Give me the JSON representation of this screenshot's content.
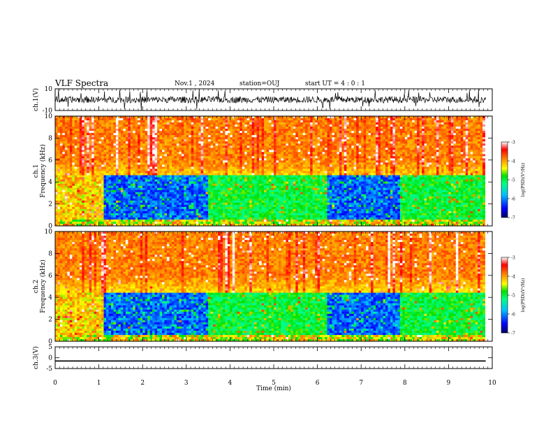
{
  "header": {
    "title": "VLF Spectra",
    "date": "Nov.1 , 2024",
    "station": "station=OUJ",
    "start_ut": "start UT = 4 : 0 : 1"
  },
  "colors": {
    "spectrogram_low": "#00007f",
    "spectrogram_mid": "#00e000",
    "spectrogram_high": "#ff2000",
    "trace": "#000000"
  },
  "chart_data": [
    {
      "id": "ch1-waveform",
      "type": "line",
      "ylabel": "ch.1(V)",
      "ylim": [
        -10,
        10
      ],
      "yticks": [
        "10",
        "-10"
      ],
      "description_values": {
        "baseline": 0,
        "typical_amplitude": 3,
        "spike_amplitude": 10
      },
      "x_range_min": [
        0,
        9.85
      ]
    },
    {
      "id": "ch1-spectrogram",
      "type": "heatmap",
      "ylabel": "ch.1\nFrequency (kHz)",
      "ylim": [
        0,
        10
      ],
      "yticks": [
        "0",
        "2",
        "4",
        "6",
        "8",
        "10"
      ],
      "colorbar": {
        "label": "log(PSD)(V²/Hz)",
        "range": [
          -7,
          -3
        ],
        "ticks": [
          "-3",
          "-4",
          "-5",
          "-6",
          "-7"
        ]
      },
      "quiet_band_khz": [
        0.5,
        4.5
      ],
      "quiet_intervals_min": [
        [
          1.1,
          3.5
        ],
        [
          6.2,
          7.9
        ]
      ],
      "moderate_intervals_min": [
        [
          3.5,
          6.2
        ],
        [
          7.9,
          9.85
        ]
      ]
    },
    {
      "id": "ch2-spectrogram",
      "type": "heatmap",
      "ylabel": "ch.2\nFrequency (kHz)",
      "ylim": [
        0,
        10
      ],
      "yticks": [
        "0",
        "2",
        "4",
        "6",
        "8",
        "10"
      ],
      "colorbar": {
        "label": "log(PSD)(V²/Hz)",
        "range": [
          -7,
          -3
        ],
        "ticks": [
          "-3",
          "-4",
          "-5",
          "-6",
          "-7"
        ]
      },
      "quiet_band_khz": [
        0.5,
        4.3
      ],
      "quiet_intervals_min": [
        [
          1.1,
          3.5
        ],
        [
          6.2,
          7.9
        ]
      ],
      "moderate_intervals_min": [
        [
          3.5,
          6.2
        ],
        [
          7.9,
          9.85
        ]
      ]
    },
    {
      "id": "ch3-waveform",
      "type": "line",
      "ylabel": "ch.3(V)",
      "ylim": [
        -5,
        5
      ],
      "yticks": [
        "5",
        "0",
        "-5"
      ],
      "constant_value": -1.5
    }
  ],
  "xaxis": {
    "label": "Time (min)",
    "ticks": [
      "0",
      "1",
      "2",
      "3",
      "4",
      "5",
      "6",
      "7",
      "8",
      "9",
      "10"
    ],
    "range": [
      0,
      10
    ]
  }
}
